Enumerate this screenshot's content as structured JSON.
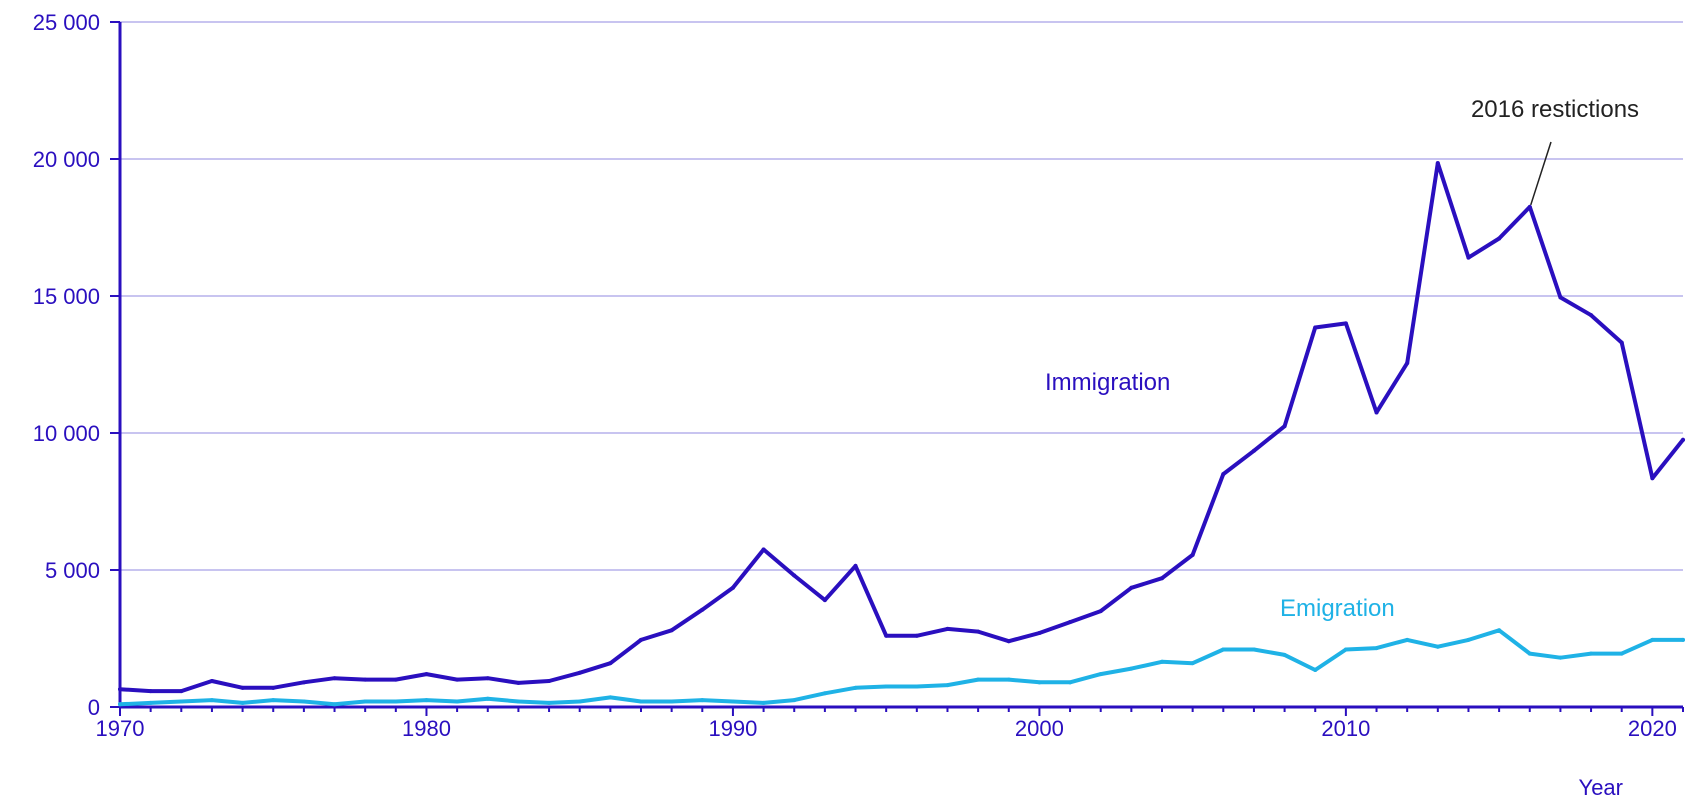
{
  "chart_data": {
    "type": "line",
    "title": "",
    "xlabel": "Year",
    "ylabel": "",
    "xlim": [
      1970,
      2021
    ],
    "ylim": [
      0,
      25000
    ],
    "y_ticks": [
      {
        "value": 0,
        "label": "0"
      },
      {
        "value": 5000,
        "label": "5 000"
      },
      {
        "value": 10000,
        "label": "10 000"
      },
      {
        "value": 15000,
        "label": "15 000"
      },
      {
        "value": 20000,
        "label": "20 000"
      },
      {
        "value": 25000,
        "label": "25 000"
      }
    ],
    "x_ticks": [
      {
        "value": 1970,
        "label": "1970"
      },
      {
        "value": 1980,
        "label": "1980"
      },
      {
        "value": 1990,
        "label": "1990"
      },
      {
        "value": 2000,
        "label": "2000"
      },
      {
        "value": 2010,
        "label": "2010"
      },
      {
        "value": 2020,
        "label": "2020"
      }
    ],
    "grid": "horizontal",
    "x": [
      1970,
      1971,
      1972,
      1973,
      1974,
      1975,
      1976,
      1977,
      1978,
      1979,
      1980,
      1981,
      1982,
      1983,
      1984,
      1985,
      1986,
      1987,
      1988,
      1989,
      1990,
      1991,
      1992,
      1993,
      1994,
      1995,
      1996,
      1997,
      1998,
      1999,
      2000,
      2001,
      2002,
      2003,
      2004,
      2005,
      2006,
      2007,
      2008,
      2009,
      2010,
      2011,
      2012,
      2013,
      2014,
      2015,
      2016,
      2017,
      2018,
      2019,
      2020,
      2021
    ],
    "series": [
      {
        "name": "Immigration",
        "color": "#2a0fbf",
        "values": [
          650,
          580,
          580,
          950,
          700,
          700,
          900,
          1050,
          1000,
          1000,
          1200,
          1000,
          1050,
          880,
          950,
          1250,
          1600,
          2450,
          2800,
          3550,
          4350,
          5750,
          4800,
          3900,
          5150,
          2600,
          2600,
          2850,
          2750,
          2400,
          2700,
          3100,
          3500,
          4350,
          4700,
          5550,
          8500,
          9350,
          10250,
          13850,
          14000,
          10750,
          12550,
          19850,
          16400,
          17100,
          18250,
          14950,
          14300,
          13300,
          8350,
          9750
        ]
      },
      {
        "name": "Emigration",
        "color": "#1fb2e6",
        "values": [
          100,
          150,
          200,
          250,
          150,
          250,
          200,
          100,
          200,
          200,
          250,
          200,
          300,
          200,
          150,
          200,
          350,
          200,
          200,
          250,
          200,
          150,
          250,
          500,
          700,
          750,
          750,
          800,
          1000,
          1000,
          900,
          900,
          1200,
          1400,
          1650,
          1600,
          2100,
          2100,
          1900,
          1350,
          2100,
          2150,
          2450,
          2200,
          2450,
          2800,
          1950,
          1800,
          1950,
          1950,
          2450,
          2450
        ]
      }
    ],
    "series_labels": [
      {
        "text": "Immigration",
        "series": 0
      },
      {
        "text": "Emigration",
        "series": 1
      }
    ],
    "annotations": [
      {
        "text": "2016 restictions",
        "x": 2016,
        "y": 18250
      }
    ],
    "colors": {
      "axis": "#2a0fbf",
      "grid": "#c8c4f0",
      "tick_text": "#2a0fbf",
      "annotation": "#222222"
    }
  }
}
